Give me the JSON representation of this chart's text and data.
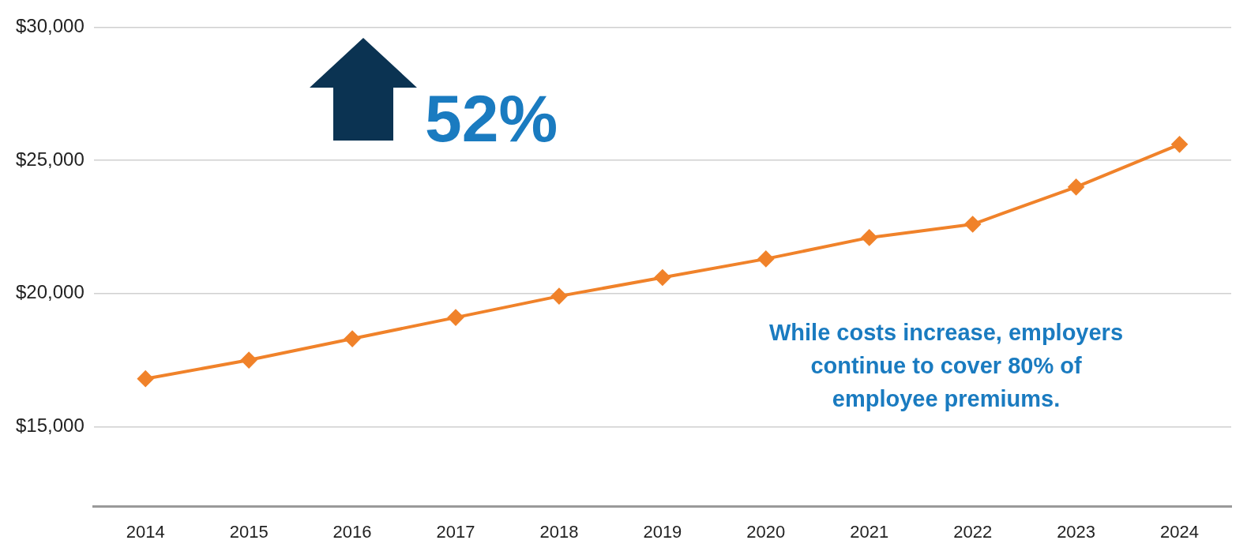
{
  "chart_data": {
    "type": "line",
    "categories": [
      "2014",
      "2015",
      "2016",
      "2017",
      "2018",
      "2019",
      "2020",
      "2021",
      "2022",
      "2023",
      "2024"
    ],
    "series": [
      {
        "color": "#f0822a",
        "values": [
          16800,
          17500,
          18300,
          19100,
          19900,
          20600,
          21300,
          22100,
          22600,
          24000,
          25600
        ]
      }
    ],
    "ylim": [
      12000,
      30000
    ],
    "yticks": [
      {
        "value": 15000,
        "label": "$15,000"
      },
      {
        "value": 20000,
        "label": "$20,000"
      },
      {
        "value": 25000,
        "label": "$25,000"
      },
      {
        "value": 30000,
        "label": "$30,000"
      }
    ],
    "grid": "y",
    "legend": false,
    "marker": "diamond",
    "line_style": "solid",
    "annotations": [
      "52%",
      "While costs increase, employers continue to cover 80% of employee premiums."
    ]
  }
}
